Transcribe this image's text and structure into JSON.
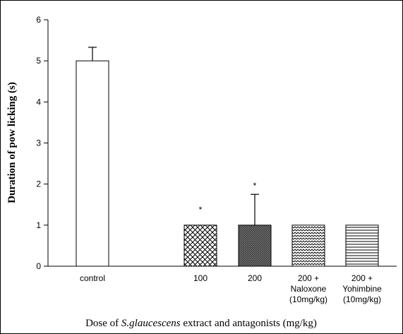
{
  "chart_data": {
    "type": "bar",
    "categories": [
      [
        "control"
      ],
      [
        "100"
      ],
      [
        "200"
      ],
      [
        "200 +",
        "Naloxone",
        "(10mg/kg)"
      ],
      [
        "200 +",
        "Yohimbine",
        "(10mg/kg)"
      ]
    ],
    "values": [
      5.0,
      1.0,
      1.0,
      1.0,
      1.0
    ],
    "error_plus": [
      0.33,
      0,
      0.75,
      0,
      0
    ],
    "significance": [
      "",
      "*",
      "*",
      "",
      ""
    ],
    "fills": [
      "blank",
      "crosshatch",
      "dense-dark",
      "zigzag",
      "horizontal-lines"
    ],
    "ylabel": "Duration of pow licking (s)",
    "xlabel_parts": [
      "Dose of ",
      "S.glaucescens",
      " extract and antagonists (mg/kg)"
    ],
    "ylim": [
      0,
      6
    ],
    "yticks": [
      0,
      1,
      2,
      3,
      4,
      5,
      6
    ],
    "grid": false,
    "border": true
  }
}
